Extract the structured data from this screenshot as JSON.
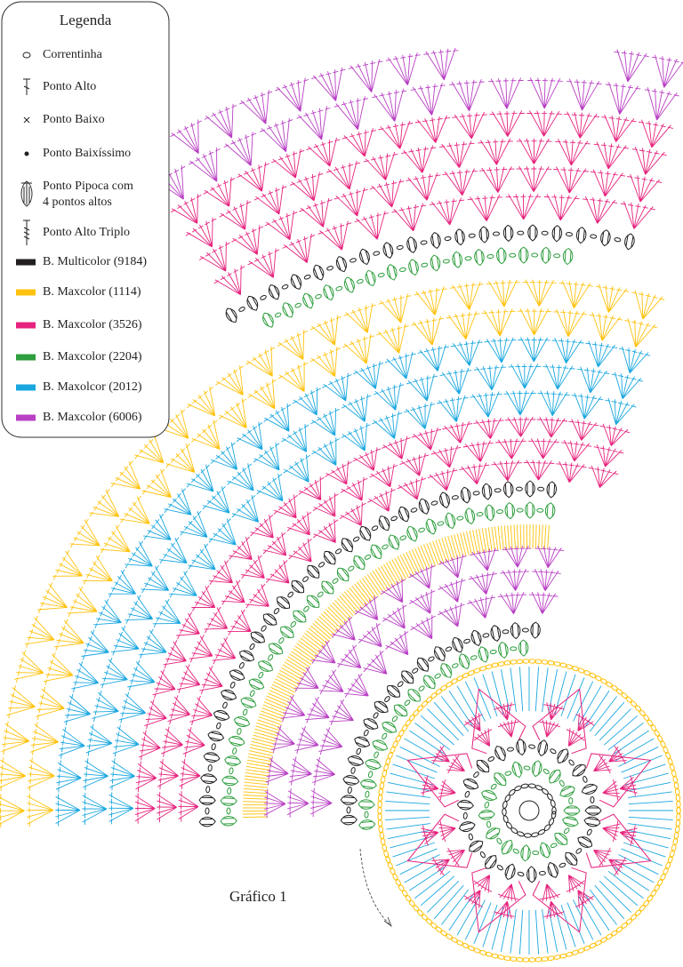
{
  "legend": {
    "title": "Legenda",
    "symbols": [
      {
        "label": "Correntinha"
      },
      {
        "label": "Ponto Alto"
      },
      {
        "label": "Ponto Baixo"
      },
      {
        "label": "Ponto Baixíssimo"
      },
      {
        "lines": [
          "Ponto Pipoca com",
          "4 pontos altos"
        ]
      },
      {
        "label": "Ponto Alto Triplo"
      }
    ],
    "yarns": [
      {
        "label": "B. Multicolor (9184)",
        "color": "#231f20"
      },
      {
        "label": "B. Maxcolor (1114)",
        "color": "#ffc20e"
      },
      {
        "label": "B. Maxcolor (3526)",
        "color": "#e6237e"
      },
      {
        "label": "B. Maxcolor (2204)",
        "color": "#2e9e3e"
      },
      {
        "label": "B. Maxolcor (2012)",
        "color": "#1aa7e0"
      },
      {
        "label": "B. Maxcolor (6006)",
        "color": "#b93fc4"
      }
    ]
  },
  "caption": "Gráfico 1"
}
